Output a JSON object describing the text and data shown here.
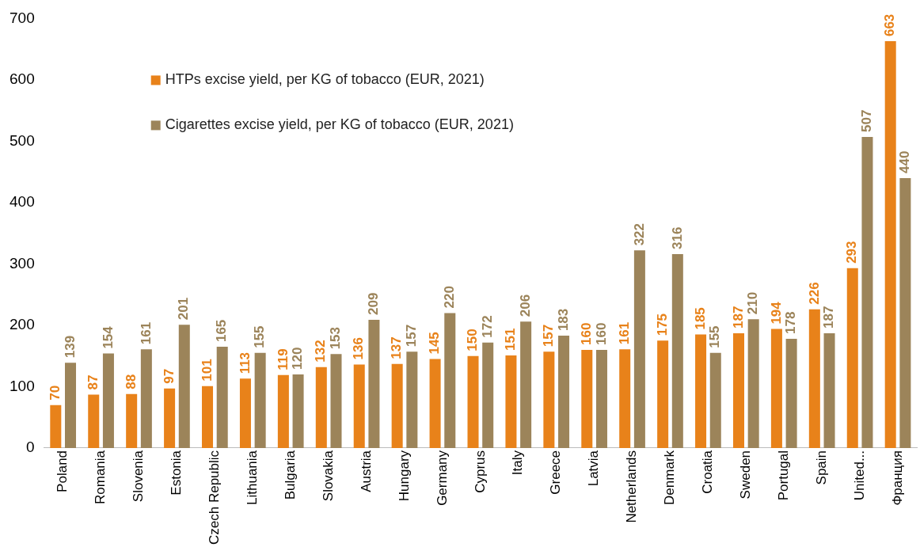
{
  "chart_data": {
    "type": "bar",
    "categories": [
      "Poland",
      "Romania",
      "Slovenia",
      "Estonia",
      "Czech Republic",
      "Lithuania",
      "Bulgaria",
      "Slovakia",
      "Austria",
      "Hungary",
      "Germany",
      "Cyprus",
      "Italy",
      "Greece",
      "Latvia",
      "Netherlands",
      "Denmark",
      "Croatia",
      "Sweden",
      "Portugal",
      "Spain",
      "United...",
      "Франция"
    ],
    "series": [
      {
        "name": "HTPs excise yield, per KG of tobacco (EUR, 2021)",
        "color": "#e8821a",
        "values": [
          70,
          87,
          88,
          97,
          101,
          113,
          119,
          132,
          136,
          137,
          145,
          150,
          151,
          157,
          160,
          161,
          175,
          185,
          187,
          194,
          226,
          293,
          663
        ]
      },
      {
        "name": "Cigarettes excise yield, per KG of tobacco (EUR, 2021)",
        "color": "#9c845a",
        "values": [
          139,
          154,
          161,
          201,
          165,
          155,
          120,
          153,
          209,
          157,
          220,
          172,
          206,
          183,
          160,
          322,
          316,
          155,
          210,
          178,
          187,
          507,
          440
        ]
      }
    ],
    "ylim": [
      0,
      700
    ],
    "yticks": [
      0,
      100,
      200,
      300,
      400,
      500,
      600,
      700
    ],
    "grid": false,
    "legend": "top left",
    "data_labels": true
  }
}
